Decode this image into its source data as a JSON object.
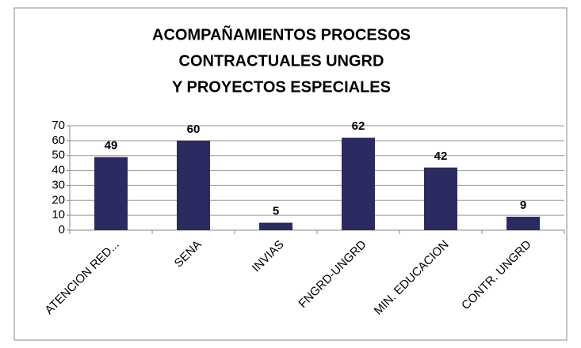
{
  "chart_data": {
    "type": "bar",
    "title": [
      "ACOMPAÑAMIENTOS PROCESOS",
      "CONTRACTUALES  UNGRD",
      "Y PROYECTOS ESPECIALES"
    ],
    "categories": [
      "ATENCION RED...",
      "SENA",
      "INVIAS",
      "FNGRD-UNGRD",
      "MIN. EDUCACION",
      "CONTR. UNGRD"
    ],
    "values": [
      49,
      60,
      5,
      62,
      42,
      9
    ],
    "color": "#2b2b62",
    "ylim": [
      0,
      70
    ],
    "yticks": [
      0,
      10,
      20,
      30,
      40,
      50,
      60,
      70
    ],
    "grid": true
  }
}
